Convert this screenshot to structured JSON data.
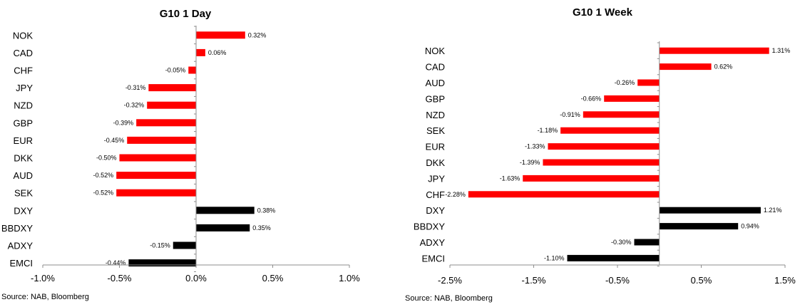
{
  "colors": {
    "g10": "#ff0000",
    "index": "#000000",
    "axis": "#8c8c8c"
  },
  "chart_data": [
    {
      "type": "bar",
      "orientation": "horizontal",
      "title": "G10 1 Day",
      "source": "Source: NAB, Bloomberg",
      "xlim": [
        -1.0,
        1.0
      ],
      "xticks": [
        "-1.0%",
        "-0.5%",
        "0.0%",
        "0.5%",
        "1.0%"
      ],
      "grid": false,
      "categories": [
        "NOK",
        "CAD",
        "CHF",
        "JPY",
        "NZD",
        "GBP",
        "EUR",
        "DKK",
        "AUD",
        "SEK",
        "DXY",
        "BBDXY",
        "ADXY",
        "EMCI"
      ],
      "values": [
        0.32,
        0.06,
        -0.05,
        -0.31,
        -0.32,
        -0.39,
        -0.45,
        -0.5,
        -0.52,
        -0.52,
        0.38,
        0.35,
        -0.15,
        -0.44
      ],
      "labels": [
        "0.32%",
        "0.06%",
        "-0.05%",
        "-0.31%",
        "-0.32%",
        "-0.39%",
        "-0.45%",
        "-0.50%",
        "-0.52%",
        "-0.52%",
        "0.38%",
        "0.35%",
        "-0.15%",
        "-0.44%"
      ],
      "bar_colors": [
        "red",
        "red",
        "red",
        "red",
        "red",
        "red",
        "red",
        "red",
        "red",
        "red",
        "black",
        "black",
        "black",
        "black"
      ]
    },
    {
      "type": "bar",
      "orientation": "horizontal",
      "title": "G10 1 Week",
      "source": "Source: NAB, Bloomberg",
      "xlim": [
        -2.5,
        1.5
      ],
      "xticks": [
        "-2.5%",
        "-1.5%",
        "-0.5%",
        "0.5%",
        "1.5%"
      ],
      "grid": false,
      "categories": [
        "NOK",
        "CAD",
        "AUD",
        "GBP",
        "NZD",
        "SEK",
        "EUR",
        "DKK",
        "JPY",
        "CHF",
        "DXY",
        "BBDXY",
        "ADXY",
        "EMCI"
      ],
      "values": [
        1.31,
        0.62,
        -0.26,
        -0.66,
        -0.91,
        -1.18,
        -1.33,
        -1.39,
        -1.63,
        -2.28,
        1.21,
        0.94,
        -0.3,
        -1.1
      ],
      "labels": [
        "1.31%",
        "0.62%",
        "-0.26%",
        "-0.66%",
        "-0.91%",
        "-1.18%",
        "-1.33%",
        "-1.39%",
        "-1.63%",
        "-2.28%",
        "1.21%",
        "0.94%",
        "-0.30%",
        "-1.10%"
      ],
      "bar_colors": [
        "red",
        "red",
        "red",
        "red",
        "red",
        "red",
        "red",
        "red",
        "red",
        "red",
        "black",
        "black",
        "black",
        "black"
      ]
    }
  ]
}
